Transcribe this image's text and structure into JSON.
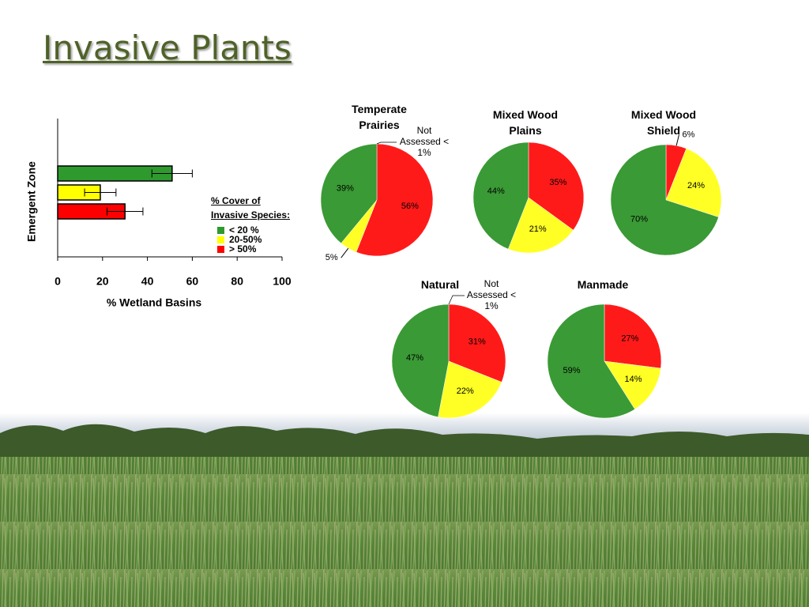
{
  "title": "Invasive Plants",
  "chart_data": [
    {
      "type": "bar",
      "orientation": "horizontal",
      "categories": [
        "Emergent Zone"
      ],
      "x_label": "% Wetland Basins",
      "legend_title": "% Cover of Invasive Species:",
      "xlim": [
        0,
        100
      ],
      "xticks": [
        0,
        20,
        40,
        60,
        80,
        100
      ],
      "series": [
        {
          "name": "< 20 %",
          "color": "#2e9a2e",
          "values": [
            51
          ],
          "errors": [
            9
          ]
        },
        {
          "name": "20-50%",
          "color": "#ffff00",
          "values": [
            19
          ],
          "errors": [
            7
          ]
        },
        {
          "name": "> 50%",
          "color": "#ff0000",
          "values": [
            30
          ],
          "errors": [
            8
          ]
        }
      ]
    },
    {
      "type": "pie",
      "title": "Temperate Prairies",
      "annotation": "Not Assessed < 1%",
      "values": [
        56,
        5,
        39
      ],
      "value_labels": [
        "56%",
        "5%",
        "39%"
      ],
      "colors": [
        "#ff1a1a",
        "#ffff26",
        "#3a9a35"
      ]
    },
    {
      "type": "pie",
      "title": "Mixed Wood Plains",
      "values": [
        35,
        21,
        44
      ],
      "value_labels": [
        "35%",
        "21%",
        "44%"
      ],
      "colors": [
        "#ff1a1a",
        "#ffff26",
        "#3a9a35"
      ]
    },
    {
      "type": "pie",
      "title": "Mixed Wood Shield",
      "values": [
        6,
        24,
        70
      ],
      "value_labels": [
        "6%",
        "24%",
        "70%"
      ],
      "colors": [
        "#ff1a1a",
        "#ffff26",
        "#3a9a35"
      ]
    },
    {
      "type": "pie",
      "title": "Natural",
      "annotation": "Not Assessed < 1%",
      "values": [
        31,
        22,
        47
      ],
      "value_labels": [
        "31%",
        "22%",
        "47%"
      ],
      "colors": [
        "#ff1a1a",
        "#ffff26",
        "#3a9a35"
      ]
    },
    {
      "type": "pie",
      "title": "Manmade",
      "values": [
        27,
        14,
        59
      ],
      "value_labels": [
        "27%",
        "14%",
        "59%"
      ],
      "colors": [
        "#ff1a1a",
        "#ffff26",
        "#3a9a35"
      ]
    }
  ]
}
